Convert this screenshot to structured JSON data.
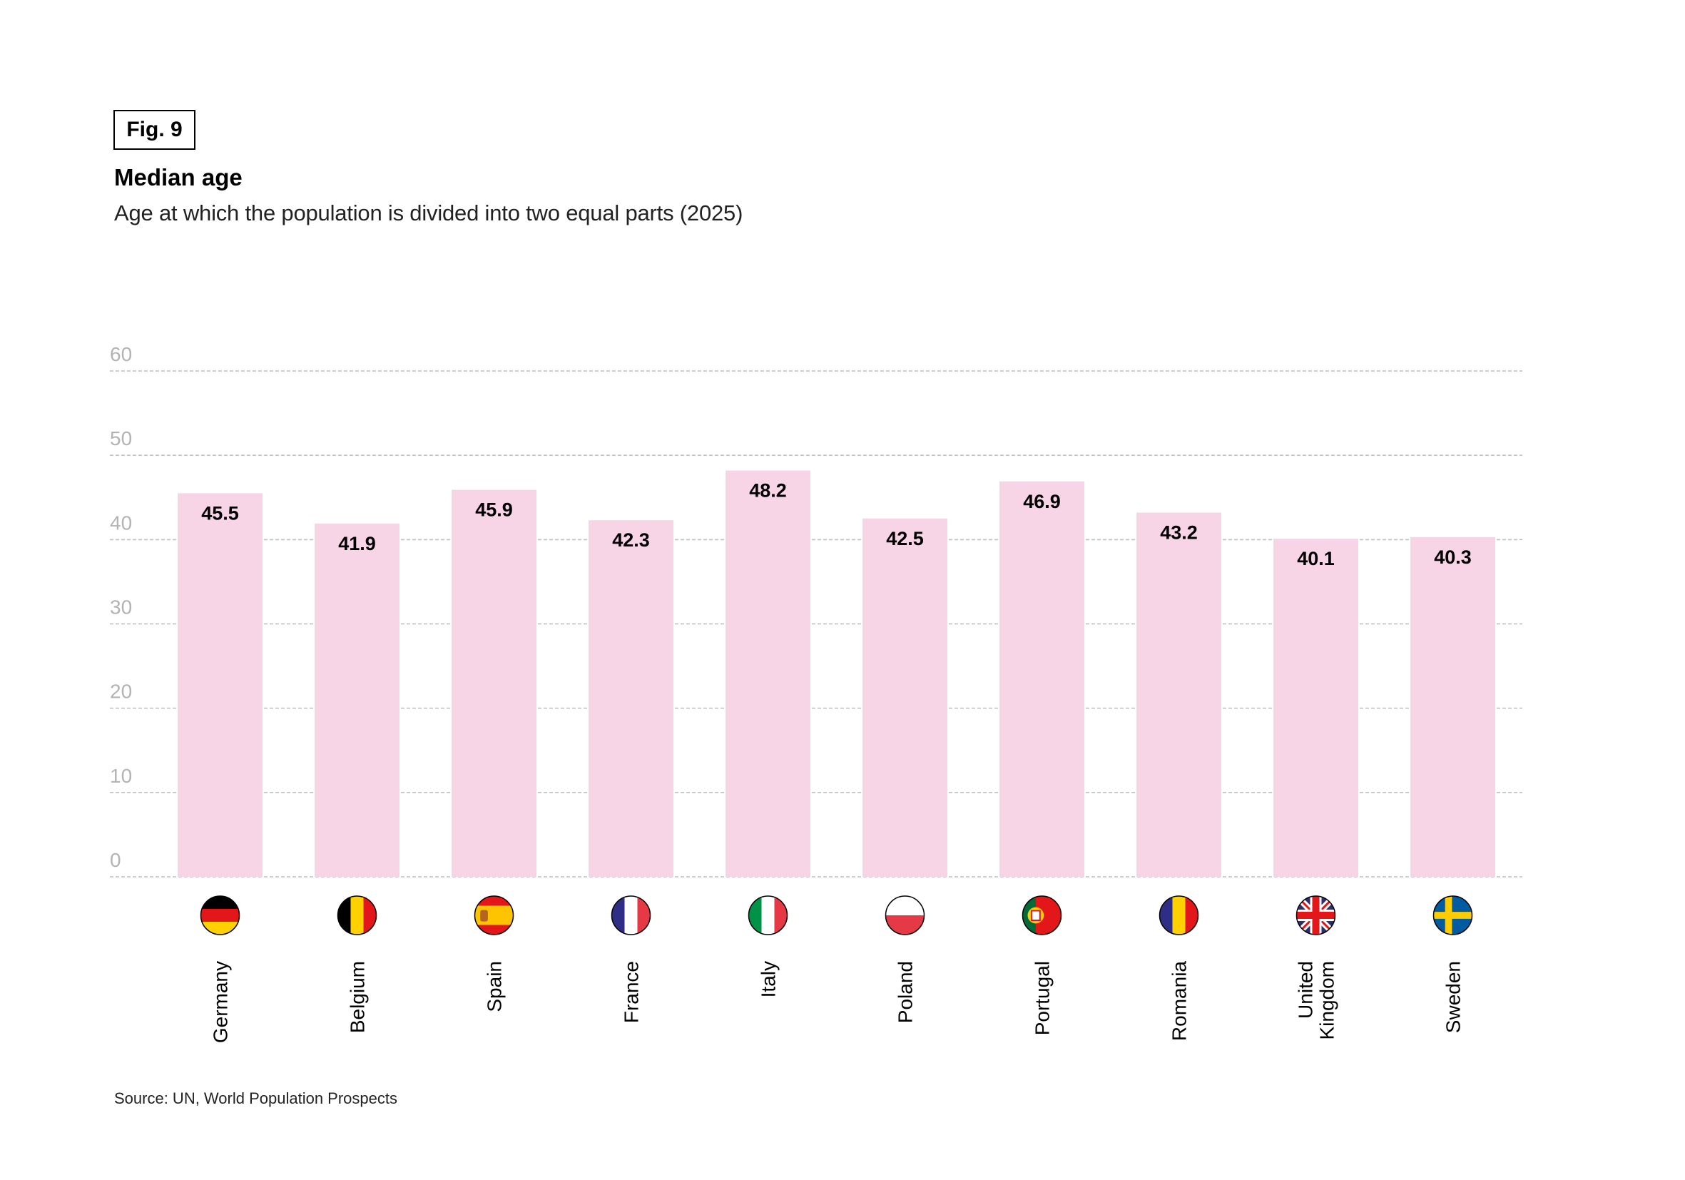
{
  "figure": {
    "label": "Fig. 9",
    "title": "Median age",
    "subtitle": "Age at which the population is divided into two equal parts (2025)",
    "source": "Source: UN, World Population Prospects"
  },
  "colors": {
    "bar": "#F8D5E6",
    "grid": "#bdbdbd",
    "tick_label": "#b3b3b3",
    "data_label": "#000000"
  },
  "chart_data": {
    "type": "bar",
    "title": "Median age",
    "subtitle": "Age at which the population is divided into two equal parts (2025)",
    "xlabel": "",
    "ylabel": "",
    "ylim": [
      0,
      60
    ],
    "yticks": [
      0,
      10,
      20,
      30,
      40,
      50,
      60
    ],
    "grid": true,
    "categories": [
      "Germany",
      "Belgium",
      "Spain",
      "France",
      "Italy",
      "Poland",
      "Portugal",
      "Romania",
      "United Kingdom",
      "Sweden"
    ],
    "category_lines": [
      [
        "Germany"
      ],
      [
        "Belgium"
      ],
      [
        "Spain"
      ],
      [
        "France"
      ],
      [
        "Italy"
      ],
      [
        "Poland"
      ],
      [
        "Portugal"
      ],
      [
        "Romania"
      ],
      [
        "United",
        "Kingdom"
      ],
      [
        "Sweden"
      ]
    ],
    "flags": [
      "germany-flag-icon",
      "belgium-flag-icon",
      "spain-flag-icon",
      "france-flag-icon",
      "italy-flag-icon",
      "poland-flag-icon",
      "portugal-flag-icon",
      "romania-flag-icon",
      "united-kingdom-flag-icon",
      "sweden-flag-icon"
    ],
    "values": [
      45.5,
      41.9,
      45.9,
      42.3,
      48.2,
      42.5,
      46.9,
      43.2,
      40.1,
      40.3
    ],
    "value_labels": [
      "45.5",
      "41.9",
      "45.9",
      "42.3",
      "48.2",
      "42.5",
      "46.9",
      "43.2",
      "40.1",
      "40.3"
    ]
  }
}
